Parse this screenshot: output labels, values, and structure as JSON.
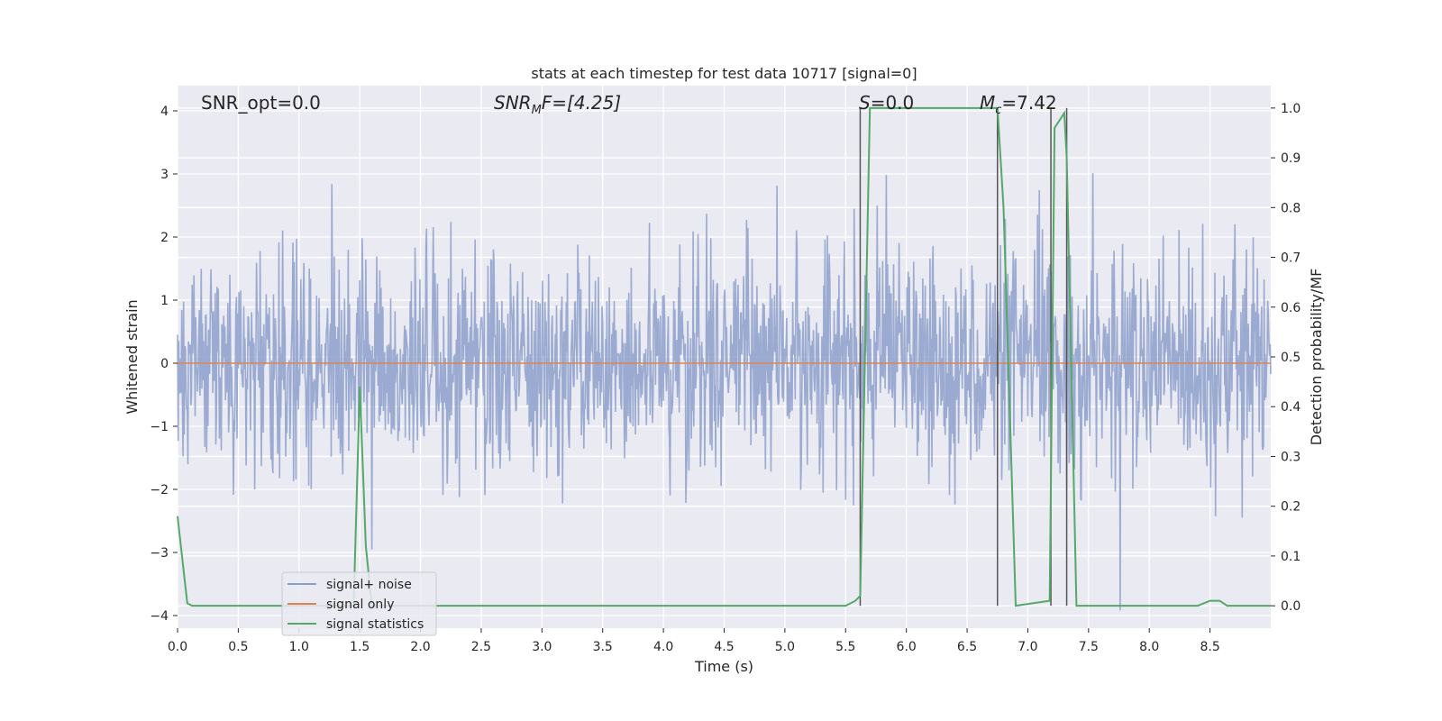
{
  "chart_data": {
    "type": "line",
    "title": "stats at each timestep for test data 10717 [signal=0]",
    "xlabel": "Time (s)",
    "ylabel": "Whitened strain",
    "y2label": "Detection probability/MF",
    "xlim": [
      0.0,
      9.0
    ],
    "ylim": [
      -4.2,
      4.4
    ],
    "y2lim": [
      -0.045,
      1.045
    ],
    "xticks": [
      "0.0",
      "0.5",
      "1.0",
      "1.5",
      "2.0",
      "2.5",
      "3.0",
      "3.5",
      "4.0",
      "4.5",
      "5.0",
      "5.5",
      "6.0",
      "6.5",
      "7.0",
      "7.5",
      "8.0",
      "8.5"
    ],
    "yticks": [
      "−4",
      "−3",
      "−2",
      "−1",
      "0",
      "1",
      "2",
      "3",
      "4"
    ],
    "y2ticks": [
      "0.0",
      "0.1",
      "0.2",
      "0.3",
      "0.4",
      "0.5",
      "0.6",
      "0.7",
      "0.8",
      "0.9",
      "1.0"
    ],
    "grid": true,
    "legend_position": "lower-left",
    "annotations": {
      "snr_opt": "SNR_opt=0.0",
      "snr_mf_main": "SNR",
      "snr_mf_sub": "M",
      "snr_mf_tail": "F=[4.25]",
      "s_main": "S",
      "s_tail": "=0.0",
      "mc_main": "M",
      "mc_sub": "c",
      "mc_tail": "=7.42"
    },
    "series": [
      {
        "name": "signal+ noise",
        "color": "#8c9fcb",
        "noise_envelope": {
          "typical_peak": 1.6,
          "max_peak": 4.0,
          "sample_rate_hz": 200
        }
      },
      {
        "name": "signal only",
        "color": "#dd8452",
        "x": [
          0.0,
          9.0
        ],
        "y": [
          0.0,
          0.0
        ]
      },
      {
        "name": "signal statistics",
        "color": "#55a868",
        "axis": "right",
        "x": [
          0.0,
          0.08,
          0.12,
          1.45,
          1.5,
          1.55,
          1.6,
          5.5,
          5.58,
          5.62,
          5.7,
          6.75,
          6.8,
          6.9,
          7.18,
          7.22,
          7.3,
          7.32,
          7.4,
          7.45,
          8.4,
          8.5,
          8.58,
          8.64,
          9.0
        ],
        "y": [
          0.18,
          0.005,
          0.0,
          0.0,
          0.44,
          0.12,
          0.0,
          0.0,
          0.01,
          0.02,
          1.0,
          1.0,
          0.8,
          0.0,
          0.01,
          0.96,
          0.99,
          0.9,
          0.0,
          0.0,
          0.0,
          0.01,
          0.01,
          0.0,
          0.0
        ]
      }
    ],
    "vertical_markers": [
      5.62,
      6.75,
      7.19,
      7.32
    ]
  }
}
